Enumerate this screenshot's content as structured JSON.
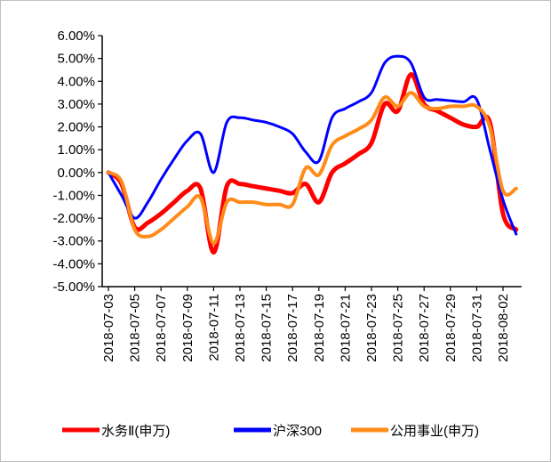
{
  "chart_data": {
    "type": "line",
    "categories": [
      "2018-07-03",
      null,
      "2018-07-05",
      null,
      "2018-07-07",
      null,
      "2018-07-09",
      null,
      "2018-07-11",
      null,
      "2018-07-13",
      null,
      "2018-07-15",
      null,
      "2018-07-17",
      null,
      "2018-07-19",
      null,
      "2018-07-21",
      null,
      "2018-07-23",
      null,
      "2018-07-25",
      null,
      "2018-07-27",
      null,
      "2018-07-29",
      null,
      "2018-07-31",
      null,
      "2018-08-02",
      null
    ],
    "series": [
      {
        "name": "水务Ⅱ(申万)",
        "color": "#ff0000",
        "values": [
          0,
          -0.5,
          -2.4,
          -2.2,
          -1.8,
          -1.3,
          -0.8,
          -0.7,
          -3.5,
          -0.6,
          -0.5,
          -0.6,
          -0.7,
          -0.8,
          -0.9,
          -0.5,
          -1.3,
          0.0,
          0.4,
          0.8,
          1.3,
          3.0,
          2.7,
          4.3,
          3.0,
          2.7,
          2.4,
          2.1,
          2.0,
          2.2,
          -1.8,
          -2.5
        ]
      },
      {
        "name": "沪深300",
        "color": "#0000ff",
        "values": [
          0,
          -1.0,
          -2.0,
          -1.3,
          -0.3,
          0.6,
          1.4,
          1.7,
          0.0,
          2.2,
          2.4,
          2.3,
          2.2,
          2.0,
          1.7,
          0.9,
          0.5,
          2.4,
          2.8,
          3.1,
          3.5,
          4.8,
          5.1,
          4.8,
          3.3,
          3.2,
          3.15,
          3.1,
          3.2,
          1.0,
          -1.2,
          -2.7
        ]
      },
      {
        "name": "公用事业(申万)",
        "color": "#ff8c1a",
        "values": [
          0,
          -0.4,
          -2.5,
          -2.8,
          -2.5,
          -2.0,
          -1.5,
          -1.1,
          -3.1,
          -1.3,
          -1.3,
          -1.3,
          -1.4,
          -1.4,
          -1.4,
          0.2,
          -0.1,
          1.2,
          1.6,
          1.9,
          2.3,
          3.3,
          2.9,
          3.5,
          2.9,
          2.8,
          2.9,
          2.9,
          2.9,
          2.0,
          -0.8,
          -0.7
        ]
      }
    ],
    "ylim": [
      -5,
      6
    ],
    "yticks": [
      {
        "value": -5,
        "label": "-5.00%"
      },
      {
        "value": -4,
        "label": "-4.00%"
      },
      {
        "value": -3,
        "label": "-3.00%"
      },
      {
        "value": -2,
        "label": "-2.00%"
      },
      {
        "value": -1,
        "label": "-1.00%"
      },
      {
        "value": 0,
        "label": "0.00%"
      },
      {
        "value": 1,
        "label": "1.00%"
      },
      {
        "value": 2,
        "label": "2.00%"
      },
      {
        "value": 3,
        "label": "3.00%"
      },
      {
        "value": 4,
        "label": "4.00%"
      },
      {
        "value": 5,
        "label": "5.00%"
      },
      {
        "value": 6,
        "label": "6.00%"
      }
    ],
    "grid": false,
    "legend": "bottom"
  }
}
